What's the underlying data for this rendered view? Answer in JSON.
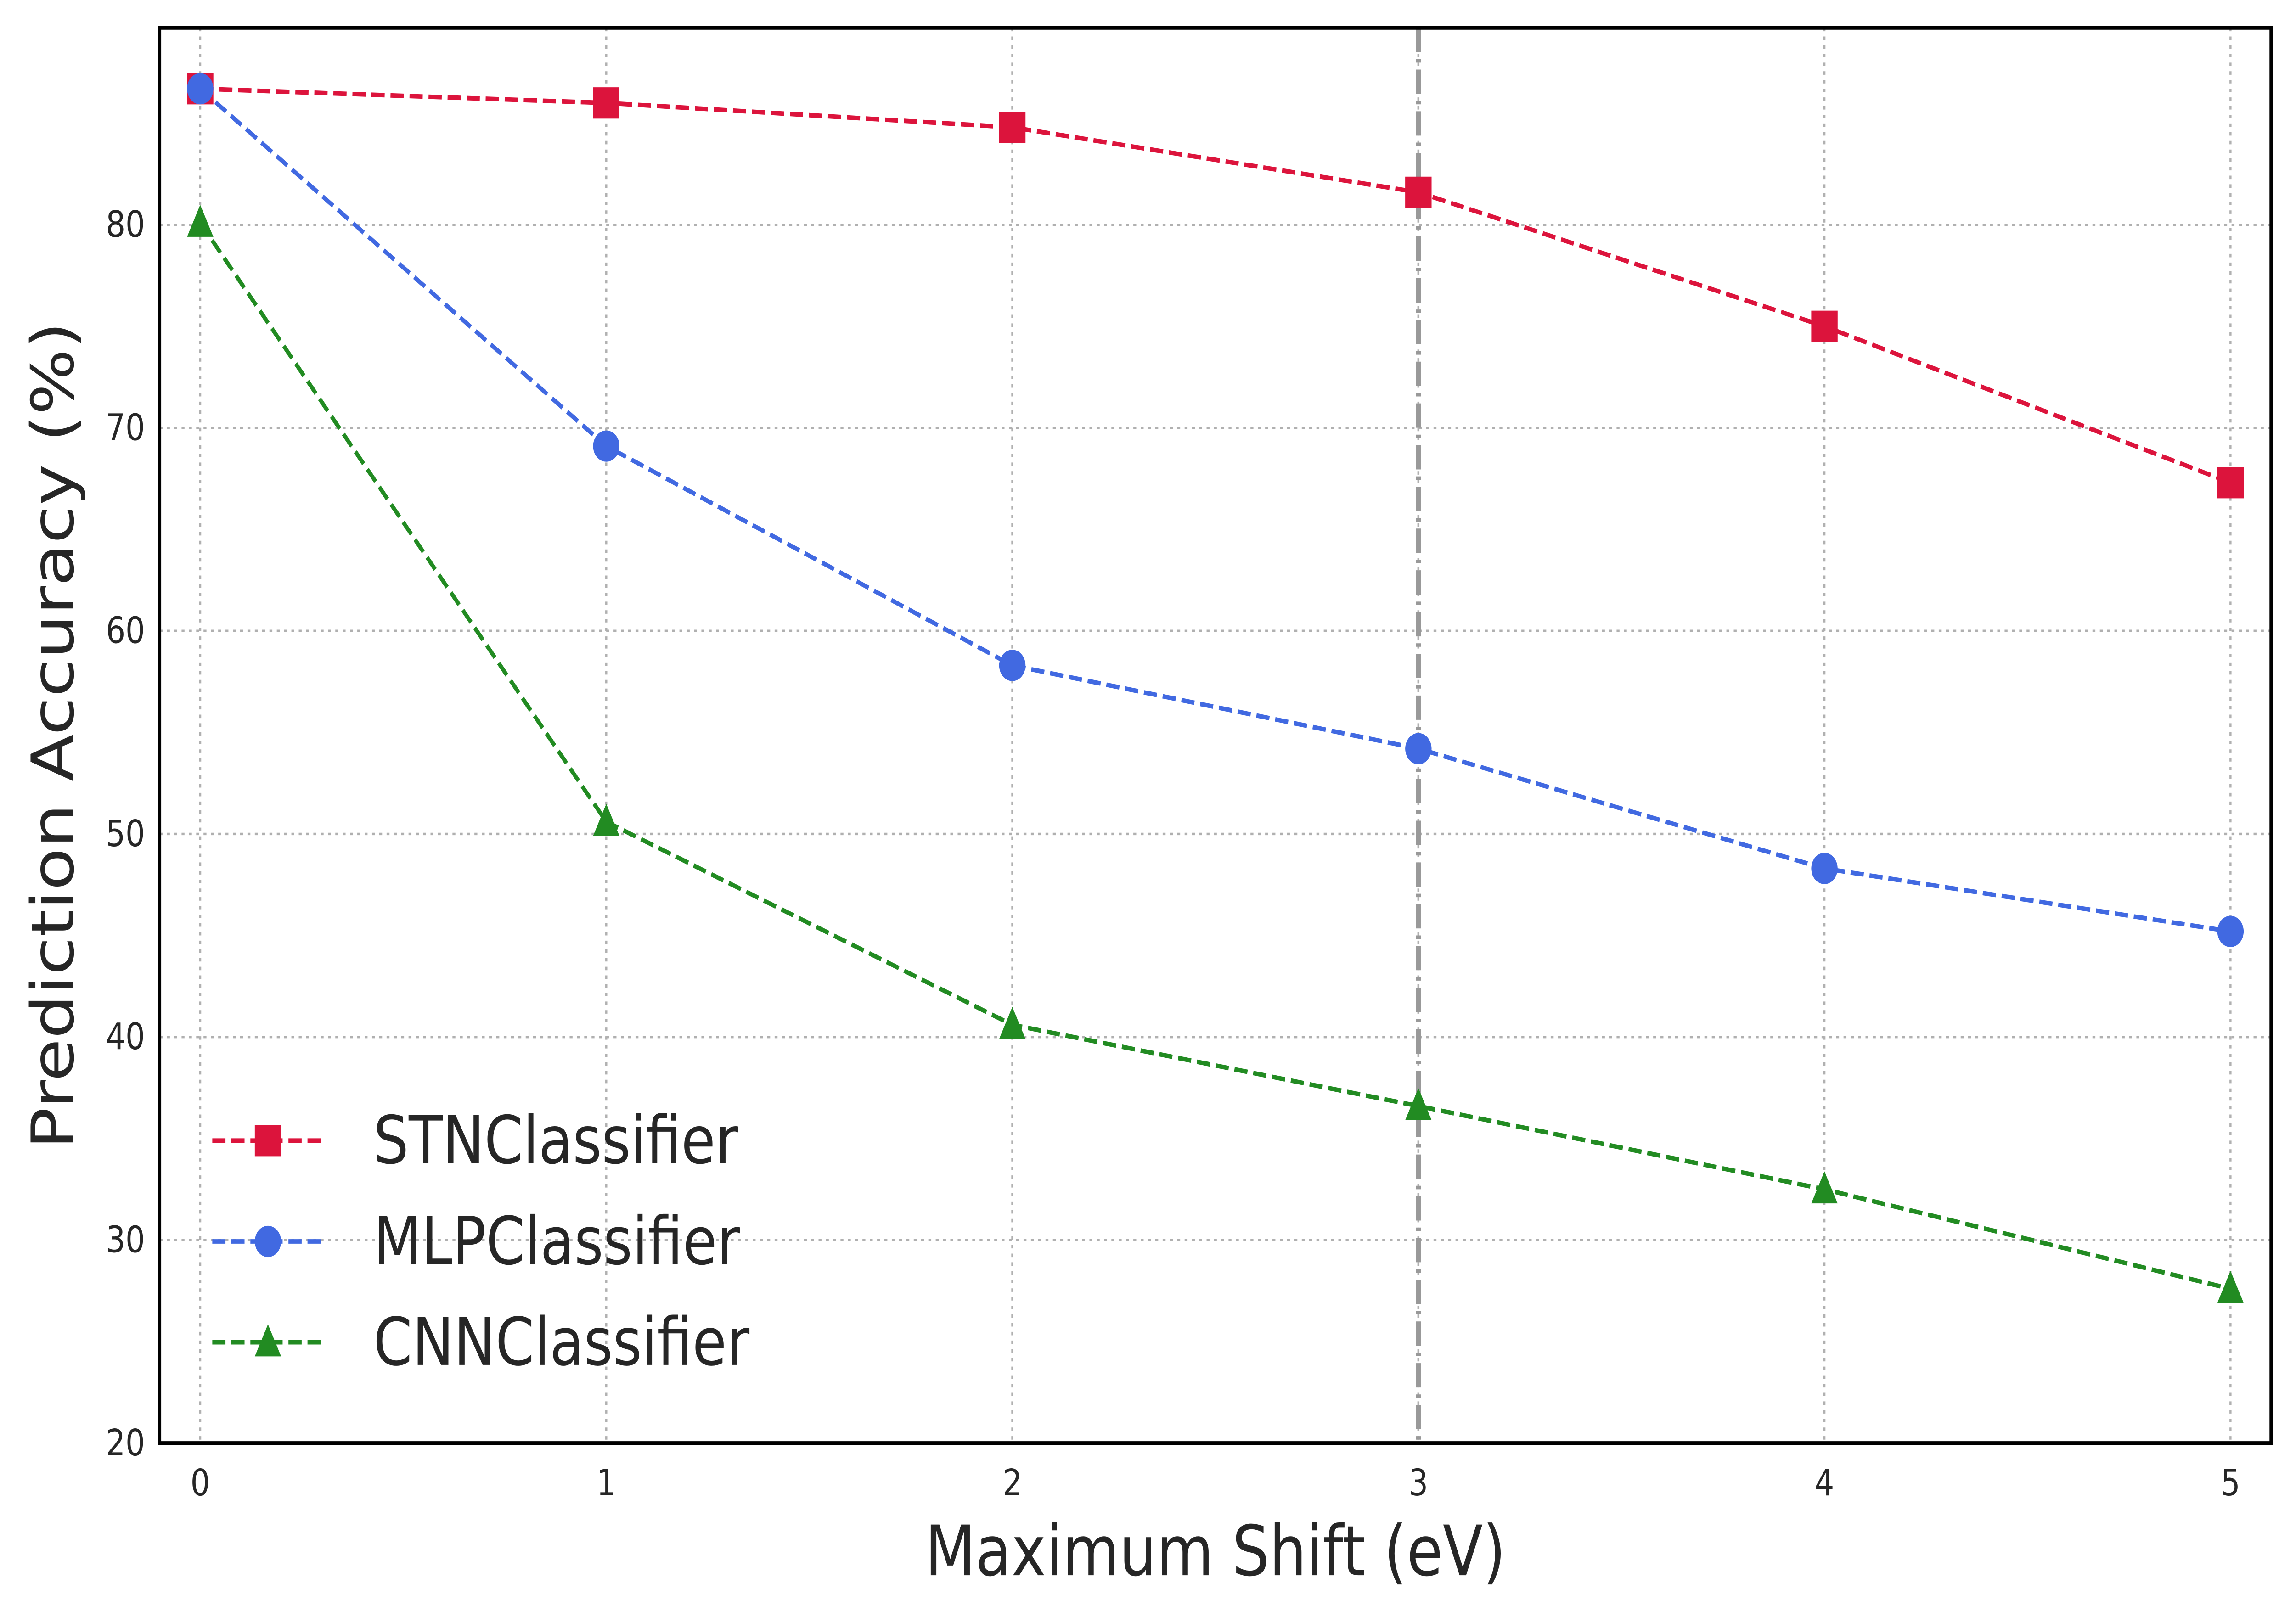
{
  "chart_data": {
    "type": "line",
    "title": "",
    "xlabel": "Maximum Shift (eV)",
    "ylabel": "Prediction Accuracy (%)",
    "x": [
      0,
      1,
      2,
      3,
      4,
      5
    ],
    "xticks": [
      "0",
      "1",
      "2",
      "3",
      "4",
      "5"
    ],
    "yticks": [
      "20",
      "30",
      "40",
      "50",
      "60",
      "70",
      "80"
    ],
    "xlim": [
      -0.1,
      5.1
    ],
    "ylim": [
      20,
      89.7
    ],
    "grid": true,
    "legend_position": "lower-left",
    "vertical_reference_line": {
      "x": 3,
      "style": "dash-dot",
      "color": "#999999"
    },
    "series": [
      {
        "name": "STNClassifier",
        "marker": "square",
        "color": "#DC143C",
        "values": [
          86.7,
          86.0,
          84.8,
          81.6,
          75.0,
          67.3
        ]
      },
      {
        "name": "MLPClassifier",
        "marker": "circle",
        "color": "#4169E1",
        "values": [
          86.7,
          69.1,
          58.3,
          54.2,
          48.3,
          45.2
        ]
      },
      {
        "name": "CNNClassifier",
        "marker": "triangle",
        "color": "#228B22",
        "values": [
          80.1,
          50.6,
          40.6,
          36.6,
          32.5,
          27.6
        ]
      }
    ]
  }
}
